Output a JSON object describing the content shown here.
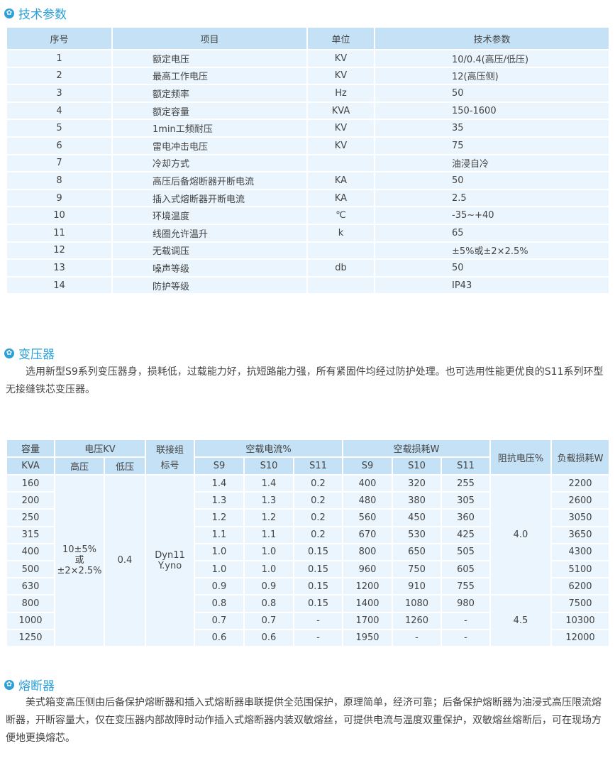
{
  "sections": {
    "params": "技术参数",
    "transformer": "变压器",
    "fuse": "熔断器"
  },
  "icons": {
    "heading": "star-circle-icon"
  },
  "colors": {
    "accent": "#2a9fd8",
    "header_bg": "#c5e1f5",
    "row_bg": "#eaf5fd"
  },
  "params_table": {
    "headers": [
      "序号",
      "项目",
      "单位",
      "技术参数"
    ],
    "rows": [
      [
        "1",
        "额定电压",
        "KV",
        "10/0.4(高压/低压)"
      ],
      [
        "2",
        "最高工作电压",
        "KV",
        "12(高压侧)"
      ],
      [
        "3",
        "额定频率",
        "Hz",
        "50"
      ],
      [
        "4",
        "额定容量",
        "KVA",
        "150-1600"
      ],
      [
        "5",
        "1min工频耐压",
        "KV",
        "35"
      ],
      [
        "6",
        "雷电冲击电压",
        "KV",
        "75"
      ],
      [
        "7",
        "冷却方式",
        "",
        "油浸自冷"
      ],
      [
        "8",
        "高压后备熔断器开断电流",
        "KA",
        "50"
      ],
      [
        "9",
        "插入式熔断器开断电流",
        "KA",
        "2.5"
      ],
      [
        "10",
        "环境温度",
        "℃",
        "-35~+40"
      ],
      [
        "11",
        "线圈允许温升",
        "k",
        "65"
      ],
      [
        "12",
        "无载调压",
        "",
        "±5%或±2×2.5%"
      ],
      [
        "13",
        "噪声等级",
        "db",
        "50"
      ],
      [
        "14",
        "防护等级",
        "",
        "IP43"
      ]
    ]
  },
  "transformer_text": "选用新型S9系列变压器身，损耗低，过载能力好，抗短路能力强，所有紧固件均经过防护处理。也可选用性能更优良的S11系列环型无接缝铁芯变压器。",
  "spec_table": {
    "h_capacity": "容量",
    "h_capacity_unit": "KVA",
    "h_voltage": "电压KV",
    "h_high": "高压",
    "h_low": "低压",
    "h_group": "联接组标号",
    "h_noload_current": "空载电流%",
    "h_noload_loss": "空载损耗W",
    "h_impedance": "阻抗电压%",
    "h_load_loss": "负载损耗W",
    "sub": [
      "S9",
      "S10",
      "S11"
    ],
    "high_value": "10±5%\n或\n±2×2.5%",
    "low_value": "0.4",
    "group_value": "Dyn11\nY.yno",
    "impedance": [
      "4.0",
      "4.5"
    ],
    "rows": [
      [
        "160",
        "1.4",
        "1.4",
        "0.2",
        "400",
        "320",
        "255",
        "2200"
      ],
      [
        "200",
        "1.3",
        "1.3",
        "0.2",
        "480",
        "380",
        "305",
        "2600"
      ],
      [
        "250",
        "1.2",
        "1.2",
        "0.2",
        "560",
        "450",
        "360",
        "3050"
      ],
      [
        "315",
        "1.1",
        "1.1",
        "0.2",
        "670",
        "530",
        "425",
        "3650"
      ],
      [
        "400",
        "1.0",
        "1.0",
        "0.15",
        "800",
        "650",
        "505",
        "4300"
      ],
      [
        "500",
        "1.0",
        "1.0",
        "0.15",
        "960",
        "750",
        "605",
        "5100"
      ],
      [
        "630",
        "0.9",
        "0.9",
        "0.15",
        "1200",
        "910",
        "755",
        "6200"
      ],
      [
        "800",
        "0.8",
        "0.8",
        "0.15",
        "1400",
        "1080",
        "980",
        "7500"
      ],
      [
        "1000",
        "0.7",
        "0.7",
        "-",
        "1700",
        "1260",
        "-",
        "10300"
      ],
      [
        "1250",
        "0.6",
        "0.6",
        "-",
        "1950",
        "-",
        "-",
        "12000"
      ]
    ]
  },
  "fuse_text": "美式箱变高压侧由后备保护熔断器和插入式熔断器串联提供全范围保护，原理简单，经济可靠；后备保护熔断器为油浸式高压限流熔断器，开断容量大，仅在变压器内部故障时动作插入式熔断器内装双敏熔丝，可提供电流与温度双重保护，双敏熔丝熔断后，可在现场方便地更换熔芯。"
}
